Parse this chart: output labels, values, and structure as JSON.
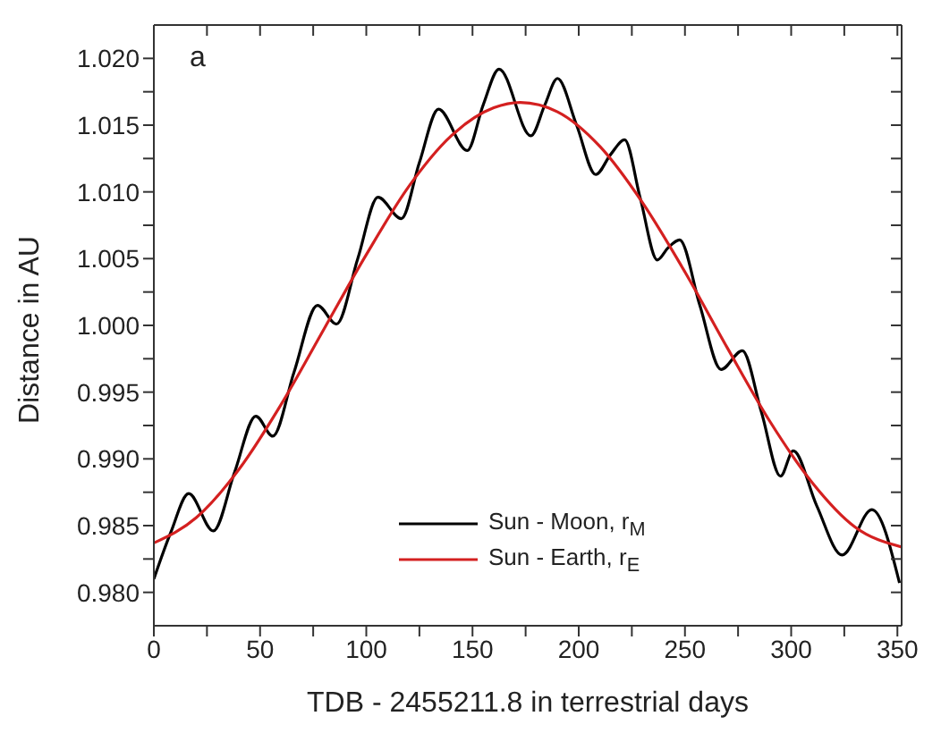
{
  "chart_data": {
    "type": "line",
    "xlabel": "TDB - 2455211.8 in terrestrial days",
    "ylabel": "Distance in AU",
    "annotations": [
      "a"
    ],
    "xlim": [
      0,
      352
    ],
    "xticks": [
      0,
      {
        "value": 25,
        "label": null
      },
      50,
      {
        "value": 75,
        "label": null
      },
      100,
      {
        "value": 125,
        "label": null
      },
      150,
      {
        "value": 175,
        "label": null
      },
      200,
      {
        "value": 225,
        "label": null
      },
      250,
      {
        "value": 275,
        "label": null
      },
      300,
      {
        "value": 325,
        "label": null
      },
      350
    ],
    "ylim": [
      0.9775,
      1.0225
    ],
    "yticks": [
      {
        "value": 0.98,
        "label": "0.980"
      },
      {
        "value": 0.9825,
        "label": null
      },
      {
        "value": 0.985,
        "label": "0.985"
      },
      {
        "value": 0.9875,
        "label": null
      },
      {
        "value": 0.99,
        "label": "0.990"
      },
      {
        "value": 0.9925,
        "label": null
      },
      {
        "value": 0.995,
        "label": "0.995"
      },
      {
        "value": 0.9975,
        "label": null
      },
      {
        "value": 1.0,
        "label": "1.000"
      },
      {
        "value": 1.0025,
        "label": null
      },
      {
        "value": 1.005,
        "label": "1.005"
      },
      {
        "value": 1.0075,
        "label": null
      },
      {
        "value": 1.01,
        "label": "1.010"
      },
      {
        "value": 1.0125,
        "label": null
      },
      {
        "value": 1.015,
        "label": "1.015"
      },
      {
        "value": 1.0175,
        "label": null
      },
      {
        "value": 1.02,
        "label": "1.020"
      }
    ],
    "legend": "bottom",
    "marker": "none",
    "line_style": "solid",
    "series": [
      {
        "name": "Sun - Moon, r$_{M}$",
        "color": "#000000",
        "x": [
          0,
          8,
          16.4,
          28,
          38,
          48,
          56,
          66,
          77,
          86,
          96,
          105.5,
          116.5,
          125,
          134,
          147.5,
          155,
          162.5,
          177.5,
          184,
          190,
          199,
          208,
          215,
          221.6,
          229,
          237,
          242,
          247.5,
          257,
          267,
          277,
          286,
          295,
          301,
          312,
          324,
          338,
          351
        ],
        "values": [
          0.981,
          0.9845,
          0.9874,
          0.9846,
          0.989,
          0.9932,
          0.9917,
          0.9965,
          1.0015,
          1.0001,
          1.005,
          1.0096,
          1.008,
          1.0122,
          1.0162,
          1.0131,
          1.0165,
          1.0192,
          1.0142,
          1.0165,
          1.0185,
          1.015,
          1.0113,
          1.0128,
          1.0139,
          1.0095,
          1.0049,
          1.0058,
          1.0064,
          1.0015,
          0.9967,
          0.9981,
          0.9935,
          0.9887,
          0.9906,
          0.9865,
          0.9828,
          0.9862,
          0.9807
        ]
      },
      {
        "name": "Sun - Earth, r$_{E}$",
        "color": "#d42020",
        "x": [
          0,
          20,
          40,
          60,
          80,
          100,
          120,
          140,
          160,
          172.5,
          190,
          210,
          230,
          250,
          270,
          290,
          310,
          330,
          352
        ],
        "values": [
          0.9837,
          0.9856,
          0.9892,
          0.9941,
          0.9997,
          1.0053,
          1.0104,
          1.0142,
          1.0163,
          1.0167,
          1.016,
          1.0134,
          1.0092,
          1.004,
          0.9983,
          0.9928,
          0.9882,
          0.9849,
          0.9834
        ]
      }
    ]
  }
}
